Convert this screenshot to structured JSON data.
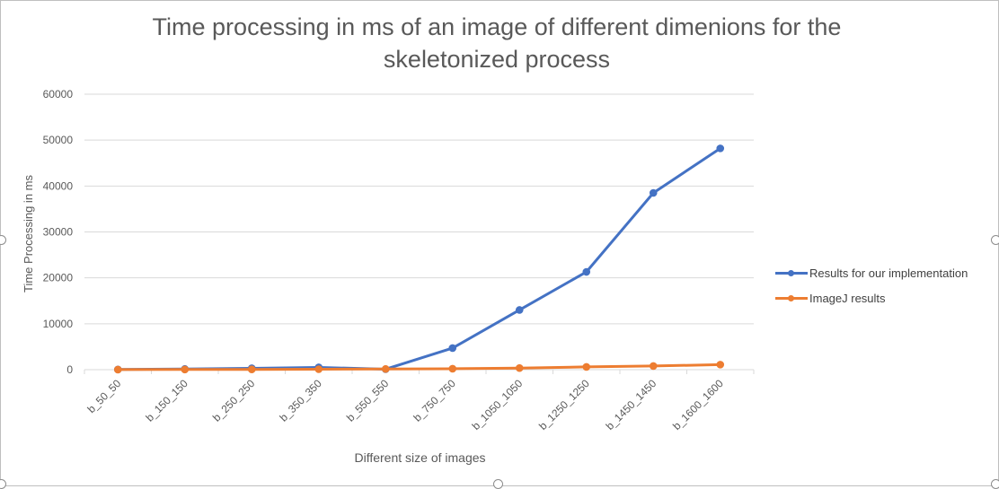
{
  "chart_data": {
    "type": "line",
    "title_line1": "Time processing in ms of an image of different dimenions for the",
    "title_line2": "skeletonized process",
    "xlabel": "Different size of images",
    "ylabel": "Time Processing in ms",
    "categories": [
      "b_50_50",
      "b_150_150",
      "b_250_250",
      "b_350_350",
      "b_550_550",
      "b_750_750",
      "b_1050_1050",
      "b_1250_1250",
      "b_1450_1450",
      "b_1600_1600"
    ],
    "ylim": [
      0,
      60000
    ],
    "yticks": [
      "0",
      "10000",
      "20000",
      "30000",
      "40000",
      "50000",
      "60000"
    ],
    "grid": true,
    "legend_position": "right",
    "series": [
      {
        "name": "Results for our implementation",
        "color": "#4472c4",
        "values": [
          50,
          150,
          300,
          500,
          100,
          4700,
          13000,
          21300,
          38500,
          48200
        ]
      },
      {
        "name": "ImageJ results",
        "color": "#ed7d31",
        "values": [
          20,
          40,
          60,
          100,
          150,
          200,
          350,
          600,
          800,
          1100
        ]
      }
    ]
  }
}
